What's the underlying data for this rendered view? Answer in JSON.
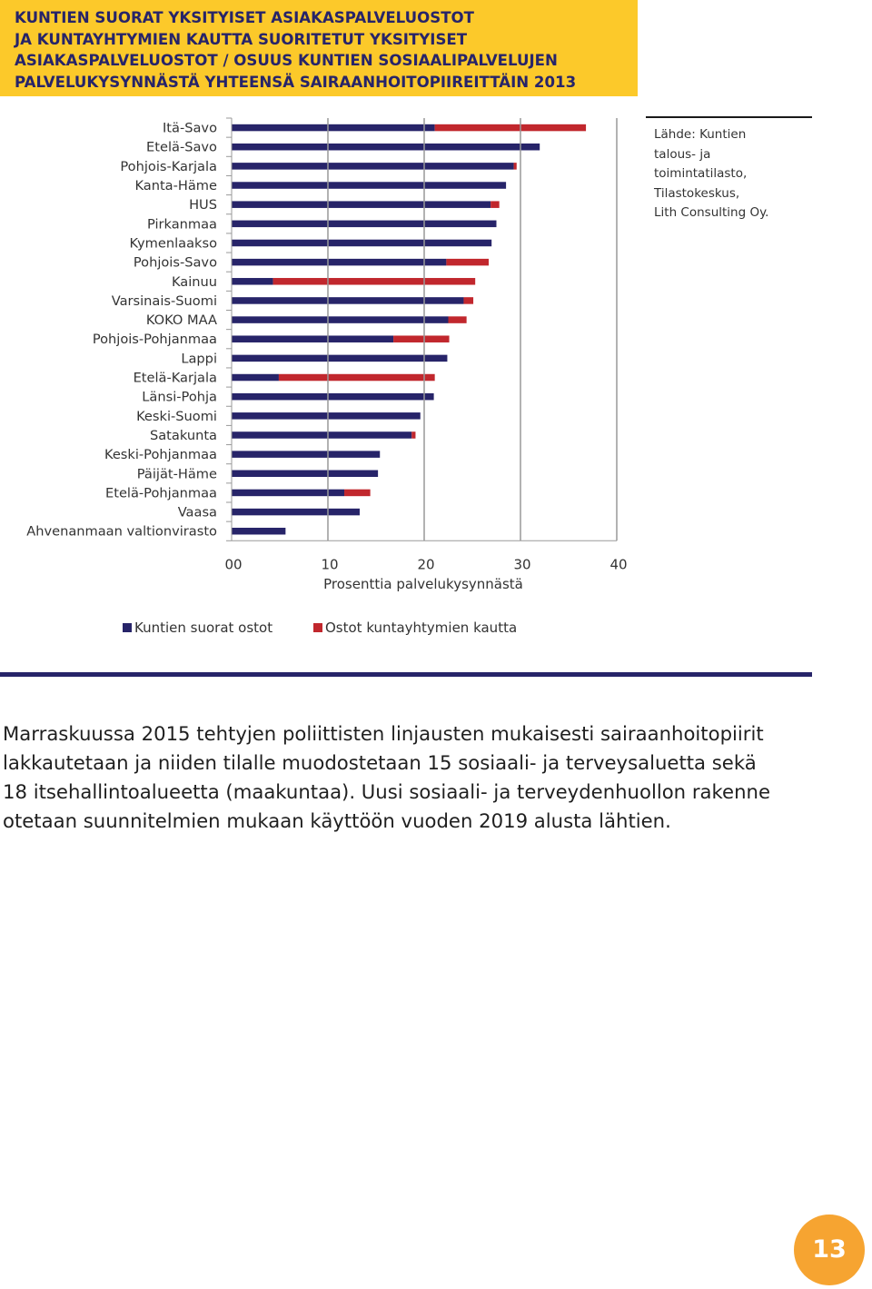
{
  "header": {
    "title_lines": [
      "KUNTIEN SUORAT YKSITYISET ASIAKASPALVELUOSTOT",
      "JA KUNTAYHTYMIEN KAUTTA SUORITETUT YKSITYISET",
      "ASIAKASPALVELUOSTOT / OSUUS KUNTIEN SOSIAALIPALVELUJEN",
      "PALVELUKYSYNNÄSTÄ YHTEENSÄ SAIRAANHOITOPIIREITTÄIN 2013"
    ]
  },
  "chart_data": {
    "type": "bar",
    "orientation": "horizontal",
    "stacked": true,
    "title": "",
    "xlabel": "Prosenttia palvelukysynnästä",
    "ylabel": "",
    "xlim": [
      0,
      40
    ],
    "x_tick_labels": [
      "00",
      "10",
      "20",
      "30",
      "40"
    ],
    "grid": false,
    "legend_position": "bottom",
    "categories": [
      "Itä-Savo",
      "Etelä-Savo",
      "Pohjois-Karjala",
      "Kanta-Häme",
      "HUS",
      "Pirkanmaa",
      "Kymenlaakso",
      "Pohjois-Savo",
      "Kainuu",
      "Varsinais-Suomi",
      "KOKO MAA",
      "Pohjois-Pohjanmaa",
      "Lappi",
      "Etelä-Karjala",
      "Länsi-Pohja",
      "Keski-Suomi",
      "Satakunta",
      "Keski-Pohjanmaa",
      "Päijät-Häme",
      "Etelä-Pohjanmaa",
      "Vaasa",
      "Ahvenanmaan valtionvirasto"
    ],
    "series": [
      {
        "name": "Kuntien suorat ostot",
        "color": "#272469",
        "values": [
          21.1,
          32.0,
          29.3,
          28.5,
          26.9,
          27.5,
          27.0,
          22.3,
          4.3,
          24.1,
          22.5,
          16.8,
          22.4,
          4.9,
          21.0,
          19.6,
          18.7,
          15.4,
          15.2,
          11.7,
          13.3,
          5.6
        ]
      },
      {
        "name": "Ostot kuntayhtymien kautta",
        "color": "#c1272d",
        "values": [
          15.7,
          0.0,
          0.3,
          0.0,
          0.9,
          0.0,
          0.0,
          4.4,
          21.0,
          1.0,
          1.9,
          5.8,
          0.0,
          16.2,
          0.0,
          0.0,
          0.4,
          0.0,
          0.0,
          2.7,
          0.0,
          0.0
        ]
      }
    ]
  },
  "source": {
    "lines": [
      "Lähde: Kuntien",
      "talous- ja",
      "toimintatilasto,",
      "Tilastokeskus,",
      "Lith Consulting Oy."
    ]
  },
  "legend": {
    "direct": "Kuntien suorat ostot",
    "federation": "Ostot kuntayhtymien kautta",
    "direct_color": "#272469",
    "federation_color": "#c1272d"
  },
  "body": {
    "lines": [
      "Marraskuussa 2015 tehtyjen poliittisten linjausten mukaisesti sairaanhoitopiirit",
      "lakkautetaan ja niiden tilalle muodostetaan 15 sosiaali- ja terveysaluetta sekä",
      "18 itsehallintoalueetta (maakuntaa). Uusi sosiaali- ja terveydenhuollon rakenne",
      "otetaan suunnitelmien mukaan käyttöön vuoden 2019 alusta lähtien."
    ]
  },
  "page_number": "13",
  "colors": {
    "title_background": "#fcc92a",
    "title_text": "#272469",
    "page_badge": "#f6a431"
  }
}
